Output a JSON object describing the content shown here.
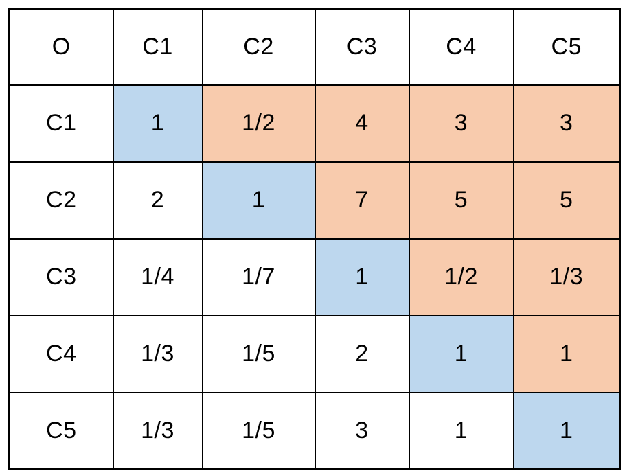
{
  "table": {
    "corner_label": "O",
    "column_headers": [
      "C1",
      "C2",
      "C3",
      "C4",
      "C5"
    ],
    "rows": [
      {
        "header": "C1",
        "cells": [
          {
            "value": "1",
            "bg": "diagonal"
          },
          {
            "value": "1/2",
            "bg": "upper"
          },
          {
            "value": "4",
            "bg": "upper"
          },
          {
            "value": "3",
            "bg": "upper"
          },
          {
            "value": "3",
            "bg": "upper"
          }
        ]
      },
      {
        "header": "C2",
        "cells": [
          {
            "value": "2",
            "bg": "none"
          },
          {
            "value": "1",
            "bg": "diagonal"
          },
          {
            "value": "7",
            "bg": "upper"
          },
          {
            "value": "5",
            "bg": "upper"
          },
          {
            "value": "5",
            "bg": "upper"
          }
        ]
      },
      {
        "header": "C3",
        "cells": [
          {
            "value": "1/4",
            "bg": "none"
          },
          {
            "value": "1/7",
            "bg": "none"
          },
          {
            "value": "1",
            "bg": "diagonal"
          },
          {
            "value": "1/2",
            "bg": "upper"
          },
          {
            "value": "1/3",
            "bg": "upper"
          }
        ]
      },
      {
        "header": "C4",
        "cells": [
          {
            "value": "1/3",
            "bg": "none"
          },
          {
            "value": "1/5",
            "bg": "none"
          },
          {
            "value": "2",
            "bg": "none"
          },
          {
            "value": "1",
            "bg": "diagonal"
          },
          {
            "value": "1",
            "bg": "upper"
          }
        ]
      },
      {
        "header": "C5",
        "cells": [
          {
            "value": "1/3",
            "bg": "none"
          },
          {
            "value": "1/5",
            "bg": "none"
          },
          {
            "value": "3",
            "bg": "none"
          },
          {
            "value": "1",
            "bg": "none"
          },
          {
            "value": "1",
            "bg": "diagonal"
          }
        ]
      }
    ]
  },
  "colors": {
    "diagonal_bg": "#bdd7ee",
    "upper_bg": "#f8cbad",
    "header_text": "#1f6fc2",
    "corner_text": "#ff0000",
    "value_text": "#000000",
    "border": "#000000",
    "page_bg": "#ffffff"
  }
}
